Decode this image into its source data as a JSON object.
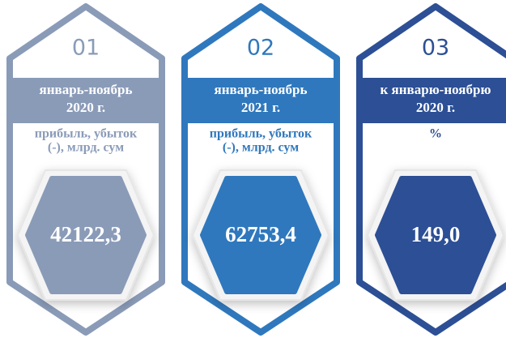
{
  "cards": [
    {
      "number": "01",
      "period": [
        "январь-ноябрь",
        "2020 г."
      ],
      "unit": [
        "прибыль, убыток",
        "(-), млрд. сум"
      ],
      "value": "42122,3",
      "color": "#8a9bb8"
    },
    {
      "number": "02",
      "period": [
        "январь-ноябрь",
        "2021 г."
      ],
      "unit": [
        "прибыль, убыток",
        "(-), млрд. сум"
      ],
      "value": "62753,4",
      "color": "#2f78bd"
    },
    {
      "number": "03",
      "period": [
        "к январю-ноябрю",
        "2020 г."
      ],
      "unit": [
        "%"
      ],
      "value": "149,0",
      "color": "#2c4f95"
    }
  ]
}
